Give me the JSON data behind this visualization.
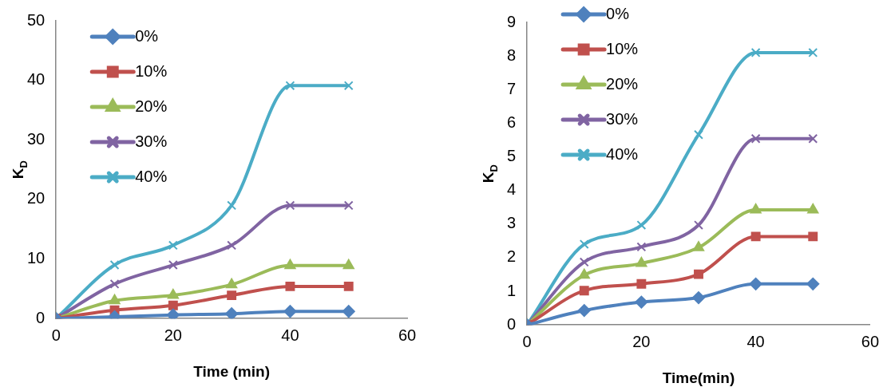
{
  "chart_data": [
    {
      "type": "line",
      "xlabel": "Time (min)",
      "ylabel": "K$_{D}$",
      "x": [
        0,
        10,
        20,
        30,
        40,
        50
      ],
      "xlim": [
        0,
        60
      ],
      "xticks": [
        0,
        20,
        40,
        60
      ],
      "ylim": [
        0,
        50
      ],
      "yticks": [
        0,
        10,
        20,
        30,
        40,
        50
      ],
      "grid": false,
      "legend": "top left",
      "series": [
        {
          "name": "0%",
          "color": "#4f81bd",
          "marker": "diamond",
          "values": [
            0,
            0.3,
            0.6,
            0.8,
            1.2,
            1.2
          ]
        },
        {
          "name": "10%",
          "color": "#c0504d",
          "marker": "square",
          "values": [
            0,
            1.4,
            2.2,
            3.9,
            5.4,
            5.4
          ]
        },
        {
          "name": "20%",
          "color": "#9bbb59",
          "marker": "triangle",
          "values": [
            0,
            3.0,
            3.9,
            5.7,
            8.9,
            8.9
          ]
        },
        {
          "name": "30%",
          "color": "#8064a2",
          "marker": "cross",
          "values": [
            0,
            5.8,
            9.0,
            12.3,
            19.0,
            19.0
          ]
        },
        {
          "name": "40%",
          "color": "#4bacc6",
          "marker": "cross",
          "values": [
            0,
            9.0,
            12.3,
            19.0,
            39.1,
            39.1
          ]
        }
      ]
    },
    {
      "type": "line",
      "xlabel": "Time(min)",
      "ylabel": "K$_{D}$",
      "x": [
        0,
        10,
        20,
        30,
        40,
        50
      ],
      "xlim": [
        0,
        60
      ],
      "xticks": [
        0,
        20,
        40,
        60
      ],
      "ylim": [
        0,
        9
      ],
      "yticks": [
        0,
        1,
        2,
        3,
        4,
        5,
        6,
        7,
        8,
        9
      ],
      "grid": false,
      "legend": "top left",
      "series": [
        {
          "name": "0%",
          "color": "#4f81bd",
          "marker": "diamond",
          "values": [
            0,
            0.43,
            0.68,
            0.81,
            1.22,
            1.22
          ]
        },
        {
          "name": "10%",
          "color": "#c0504d",
          "marker": "square",
          "values": [
            0,
            1.02,
            1.22,
            1.51,
            2.63,
            2.63
          ]
        },
        {
          "name": "20%",
          "color": "#9bbb59",
          "marker": "triangle",
          "values": [
            0,
            1.48,
            1.83,
            2.3,
            3.42,
            3.42
          ]
        },
        {
          "name": "30%",
          "color": "#8064a2",
          "marker": "cross",
          "values": [
            0,
            1.87,
            2.32,
            2.97,
            5.54,
            5.54
          ]
        },
        {
          "name": "40%",
          "color": "#4bacc6",
          "marker": "cross",
          "values": [
            0,
            2.4,
            2.97,
            5.66,
            8.1,
            8.1
          ]
        }
      ]
    }
  ]
}
